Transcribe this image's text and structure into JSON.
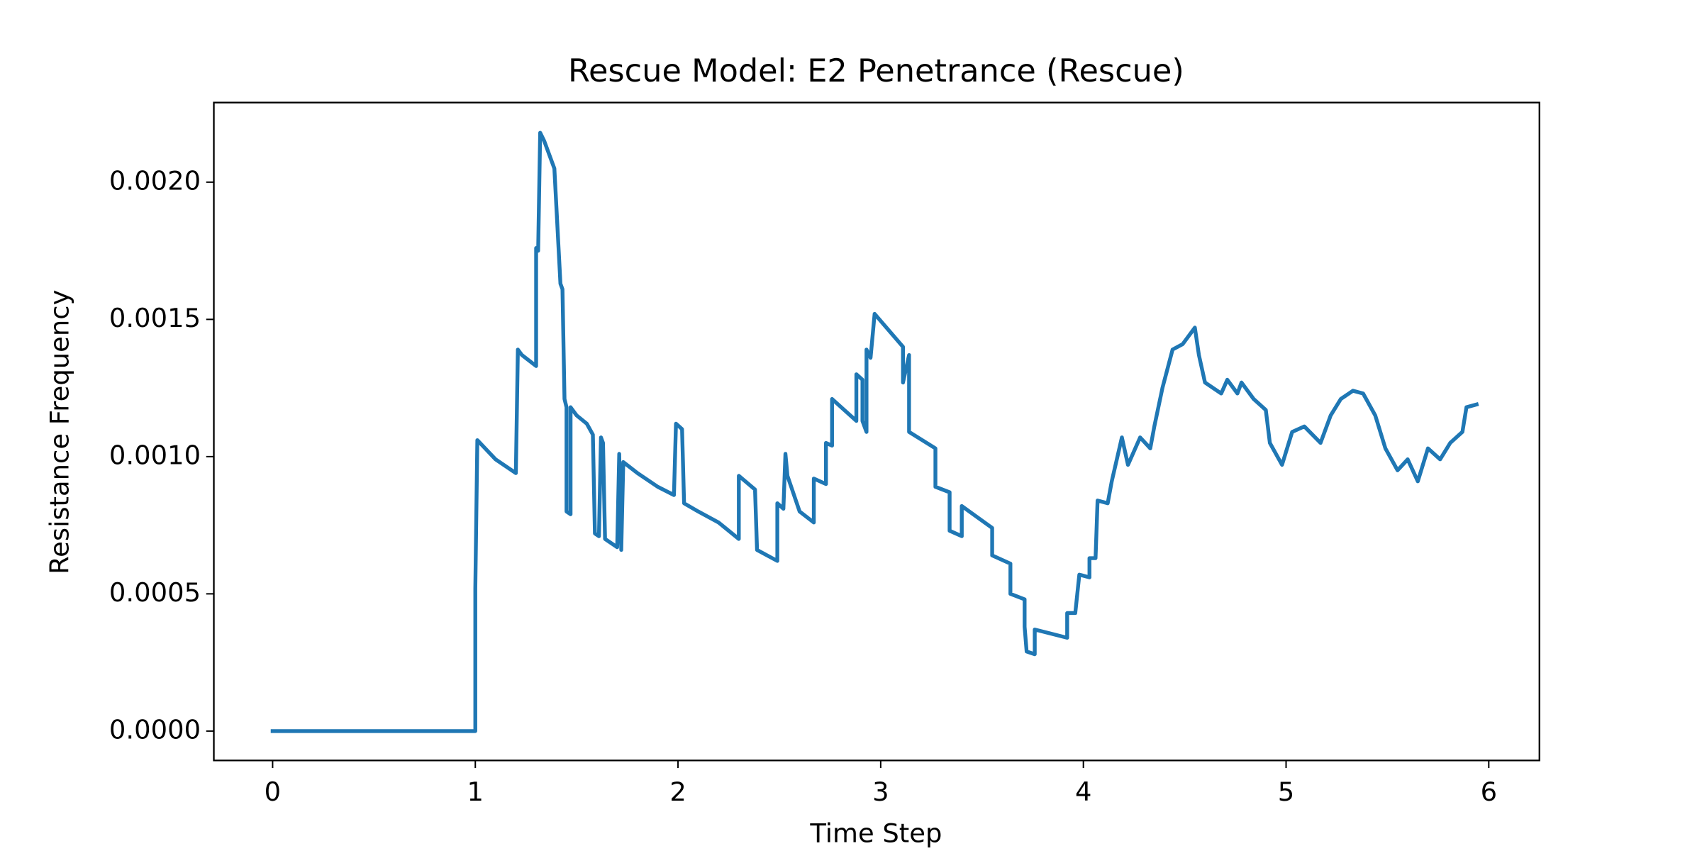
{
  "chart_data": {
    "type": "line",
    "title": "Rescue Model: E2 Penetrance (Rescue)",
    "x_label": "Time Step",
    "y_label": "Resistance Frequency",
    "xlim": [
      -0.29,
      6.25
    ],
    "ylim": [
      -0.000107,
      0.00229
    ],
    "xticks": [
      0,
      1,
      2,
      3,
      4,
      5,
      6
    ],
    "yticks": [
      {
        "value": 0,
        "label": "0.0000"
      },
      {
        "value": 0.0005,
        "label": "0.0005"
      },
      {
        "value": 0.001,
        "label": "0.0010"
      },
      {
        "value": 0.0015,
        "label": "0.0015"
      },
      {
        "value": 0.002,
        "label": "0.0020"
      }
    ],
    "series": [
      {
        "color": "#1f77b4",
        "x": [
          0,
          1.0,
          1.0,
          1.01,
          1.1,
          1.2,
          1.21,
          1.23,
          1.3,
          1.3,
          1.31,
          1.32,
          1.34,
          1.39,
          1.42,
          1.43,
          1.44,
          1.45,
          1.45,
          1.47,
          1.47,
          1.5,
          1.55,
          1.58,
          1.59,
          1.61,
          1.62,
          1.63,
          1.64,
          1.7,
          1.71,
          1.72,
          1.73,
          1.8,
          1.9,
          1.98,
          1.99,
          2.02,
          2.03,
          2.1,
          2.2,
          2.3,
          2.3,
          2.38,
          2.39,
          2.49,
          2.49,
          2.52,
          2.53,
          2.54,
          2.6,
          2.67,
          2.67,
          2.73,
          2.73,
          2.76,
          2.76,
          2.88,
          2.88,
          2.91,
          2.91,
          2.93,
          2.93,
          2.95,
          2.97,
          3.11,
          3.11,
          3.14,
          3.14,
          3.27,
          3.27,
          3.34,
          3.34,
          3.4,
          3.4,
          3.55,
          3.55,
          3.64,
          3.64,
          3.71,
          3.71,
          3.72,
          3.76,
          3.76,
          3.92,
          3.92,
          3.96,
          3.98,
          4.03,
          4.03,
          4.06,
          4.07,
          4.12,
          4.14,
          4.19,
          4.22,
          4.28,
          4.33,
          4.35,
          4.39,
          4.44,
          4.49,
          4.55,
          4.57,
          4.6,
          4.68,
          4.71,
          4.76,
          4.78,
          4.84,
          4.9,
          4.92,
          4.98,
          5.03,
          5.09,
          5.17,
          5.22,
          5.27,
          5.33,
          5.38,
          5.44,
          5.49,
          5.55,
          5.6,
          5.65,
          5.7,
          5.76,
          5.81,
          5.87,
          5.89,
          5.94
        ],
        "values": [
          0,
          0,
          0.00052,
          0.00106,
          0.00099,
          0.00094,
          0.00139,
          0.00137,
          0.00133,
          0.00176,
          0.00175,
          0.00218,
          0.00215,
          0.00205,
          0.00163,
          0.00161,
          0.00121,
          0.00118,
          0.0008,
          0.00079,
          0.00118,
          0.00115,
          0.00112,
          0.00108,
          0.00072,
          0.00071,
          0.00107,
          0.00105,
          0.0007,
          0.00067,
          0.00101,
          0.00066,
          0.00098,
          0.00094,
          0.00089,
          0.00086,
          0.00112,
          0.0011,
          0.00083,
          0.0008,
          0.00076,
          0.0007,
          0.00093,
          0.00088,
          0.00066,
          0.00062,
          0.00083,
          0.00081,
          0.00101,
          0.00093,
          0.0008,
          0.00076,
          0.00092,
          0.0009,
          0.00105,
          0.00104,
          0.00121,
          0.00113,
          0.0013,
          0.00128,
          0.00113,
          0.00109,
          0.00139,
          0.00136,
          0.00152,
          0.0014,
          0.00127,
          0.00137,
          0.00109,
          0.00103,
          0.00089,
          0.00087,
          0.00073,
          0.00071,
          0.00082,
          0.00074,
          0.00064,
          0.00061,
          0.0005,
          0.00048,
          0.00038,
          0.00029,
          0.00028,
          0.00037,
          0.00034,
          0.00043,
          0.00043,
          0.00057,
          0.00056,
          0.00063,
          0.00063,
          0.00084,
          0.00083,
          0.00091,
          0.00107,
          0.00097,
          0.00107,
          0.00103,
          0.00111,
          0.00125,
          0.00139,
          0.00141,
          0.00147,
          0.00137,
          0.00127,
          0.00123,
          0.00128,
          0.00123,
          0.00127,
          0.00121,
          0.00117,
          0.00105,
          0.00097,
          0.00109,
          0.00111,
          0.00105,
          0.00115,
          0.00121,
          0.00124,
          0.00123,
          0.00115,
          0.00103,
          0.00095,
          0.00099,
          0.00091,
          0.00103,
          0.00099,
          0.00105,
          0.00109,
          0.00118,
          0.00119
        ]
      }
    ]
  }
}
